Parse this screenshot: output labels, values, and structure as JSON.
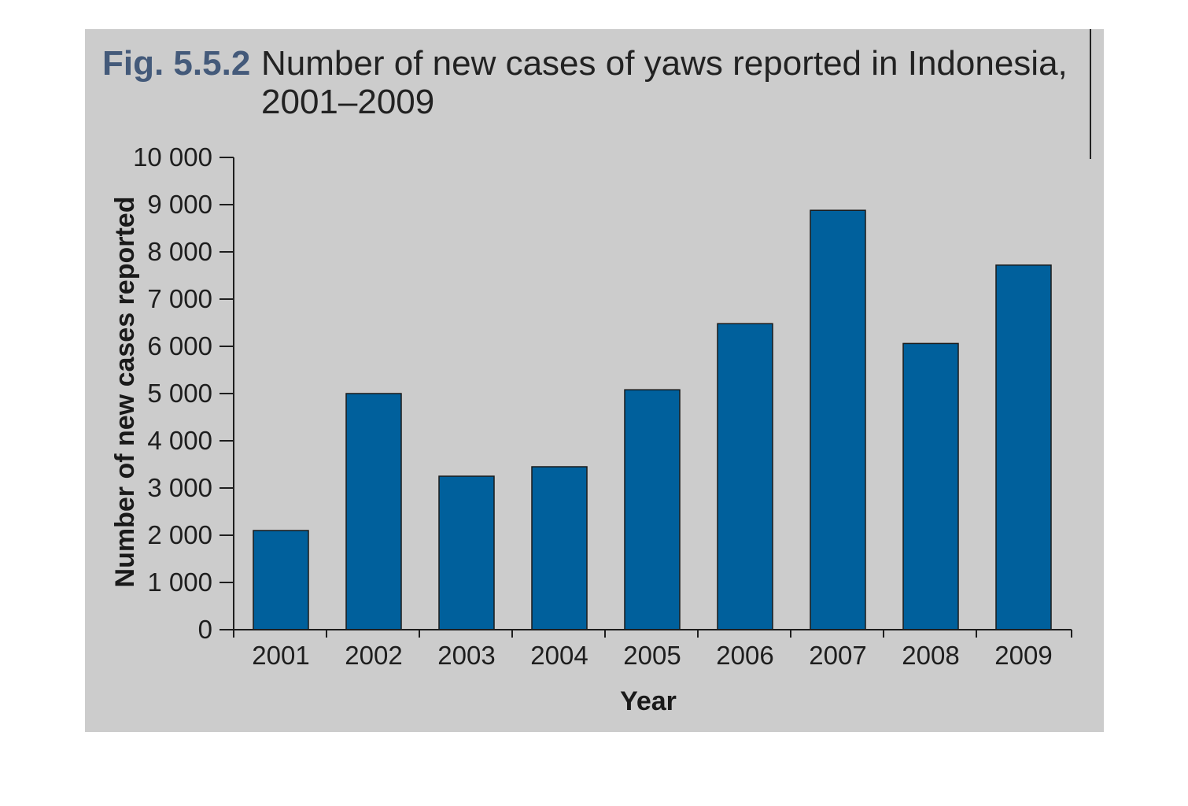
{
  "figure": {
    "number": "Fig. 5.5.2",
    "title_line1": "Number of new cases of yaws reported in Indonesia,",
    "title_line2": "2001–2009"
  },
  "colors": {
    "background": "#cccccc",
    "bar": "#00609c",
    "bar_outline": "#1a1a1a",
    "axis": "#1e1e1e"
  },
  "chart_data": {
    "type": "bar",
    "title": "Number of new cases of yaws reported in Indonesia, 2001–2009",
    "xlabel": "Year",
    "ylabel": "Number of new cases reported",
    "categories": [
      "2001",
      "2002",
      "2003",
      "2004",
      "2005",
      "2006",
      "2007",
      "2008",
      "2009"
    ],
    "values": [
      2100,
      5000,
      3250,
      3450,
      5080,
      6480,
      8880,
      6060,
      7720
    ],
    "ylim": [
      0,
      10000
    ],
    "yticks": [
      0,
      1000,
      2000,
      3000,
      4000,
      5000,
      6000,
      7000,
      8000,
      9000,
      10000
    ],
    "ytick_labels": [
      "0",
      "1 000",
      "2 000",
      "3 000",
      "4 000",
      "5 000",
      "6 000",
      "7 000",
      "8 000",
      "9 000",
      "10 000"
    ],
    "grid": false,
    "legend": "none"
  }
}
